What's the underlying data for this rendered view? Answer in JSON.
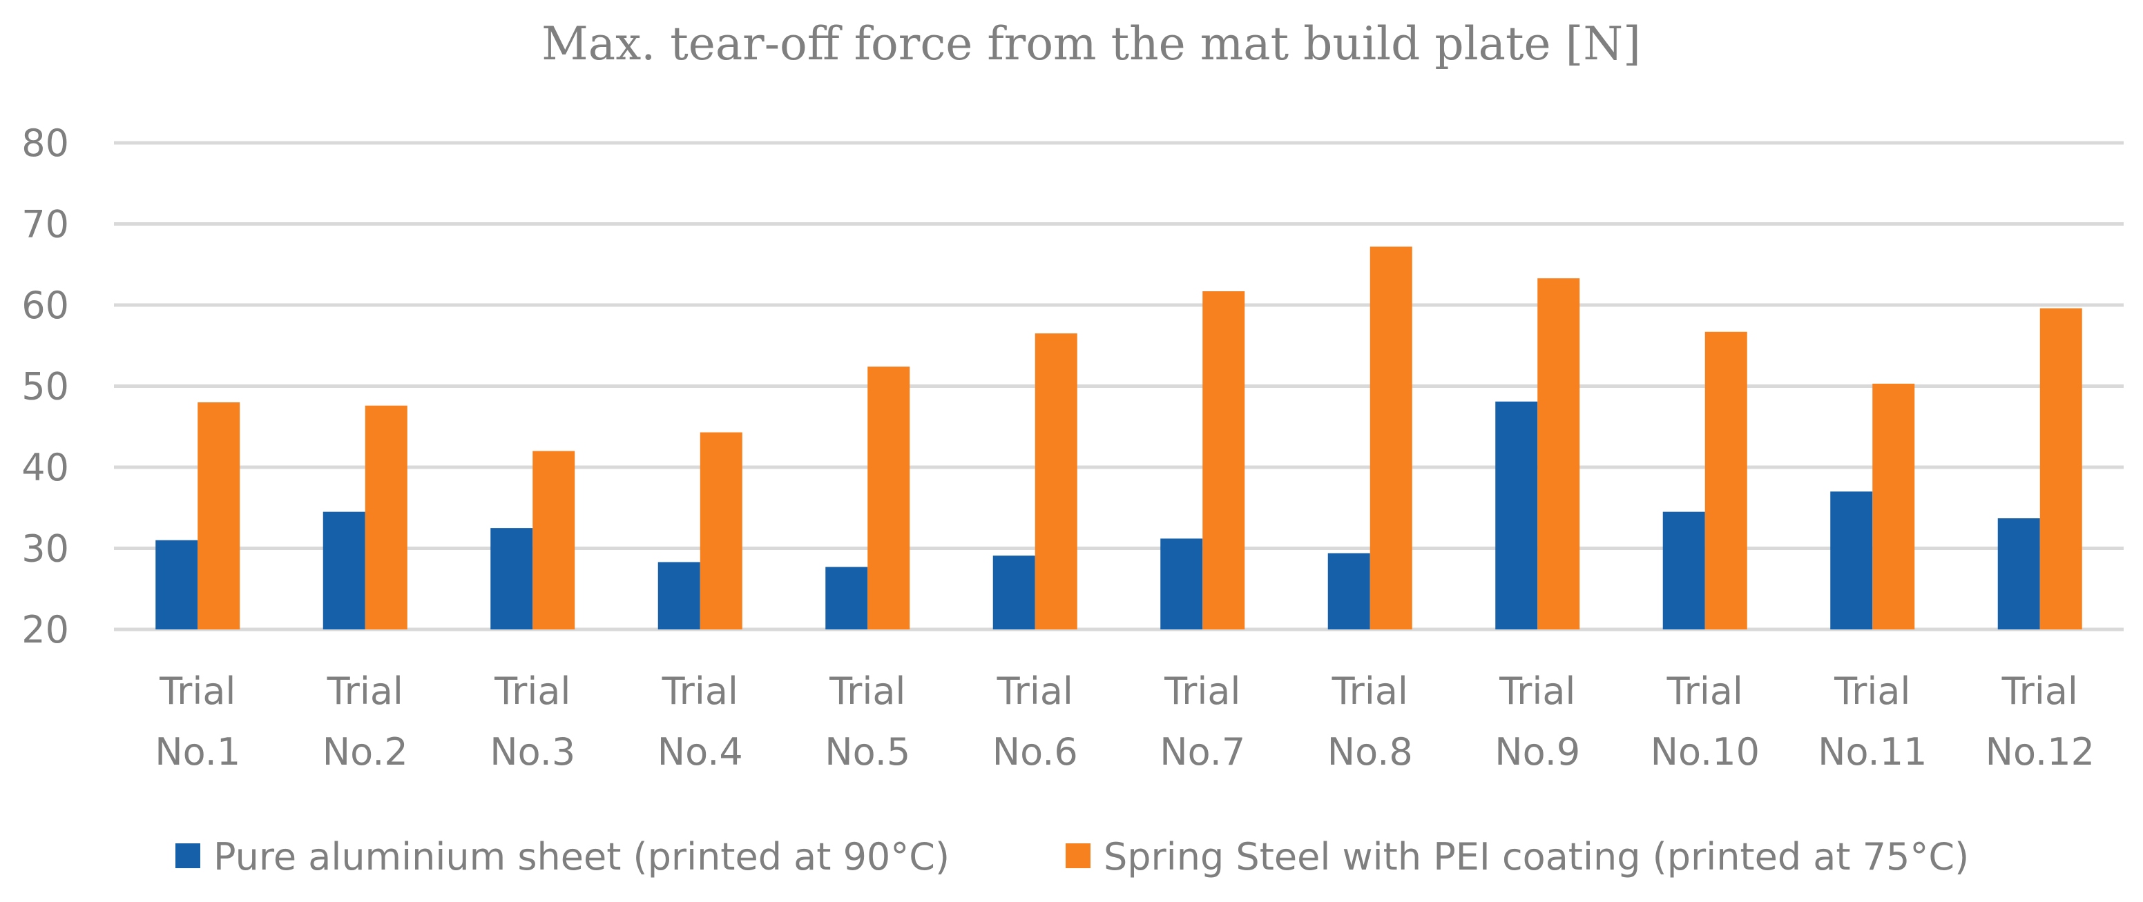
{
  "chart_data": {
    "type": "bar",
    "title": "Max. tear-off force from the mat build plate [N]",
    "xlabel": "",
    "ylabel": "",
    "ylim": [
      20,
      80
    ],
    "yticks": [
      20,
      30,
      40,
      50,
      60,
      70,
      80
    ],
    "grid": true,
    "legend_position": "bottom",
    "categories": [
      [
        "Trial",
        "No.1"
      ],
      [
        "Trial",
        "No.2"
      ],
      [
        "Trial",
        "No.3"
      ],
      [
        "Trial",
        "No.4"
      ],
      [
        "Trial",
        "No.5"
      ],
      [
        "Trial",
        "No.6"
      ],
      [
        "Trial",
        "No.7"
      ],
      [
        "Trial",
        "No.8"
      ],
      [
        "Trial",
        "No.9"
      ],
      [
        "Trial",
        "No.10"
      ],
      [
        "Trial",
        "No.11"
      ],
      [
        "Trial",
        "No.12"
      ]
    ],
    "series": [
      {
        "name": "Pure aluminium sheet (printed at 90°C)",
        "color": "#1560a8",
        "values": [
          31.0,
          34.5,
          32.5,
          28.3,
          27.7,
          29.1,
          31.2,
          29.4,
          48.1,
          34.5,
          37.0,
          33.7
        ]
      },
      {
        "name": "Spring Steel with PEI coating (printed at 75°C)",
        "color": "#f7811f",
        "values": [
          48.0,
          47.6,
          42.0,
          44.3,
          52.4,
          56.5,
          61.7,
          67.2,
          63.3,
          56.7,
          50.3,
          59.6
        ]
      }
    ]
  }
}
